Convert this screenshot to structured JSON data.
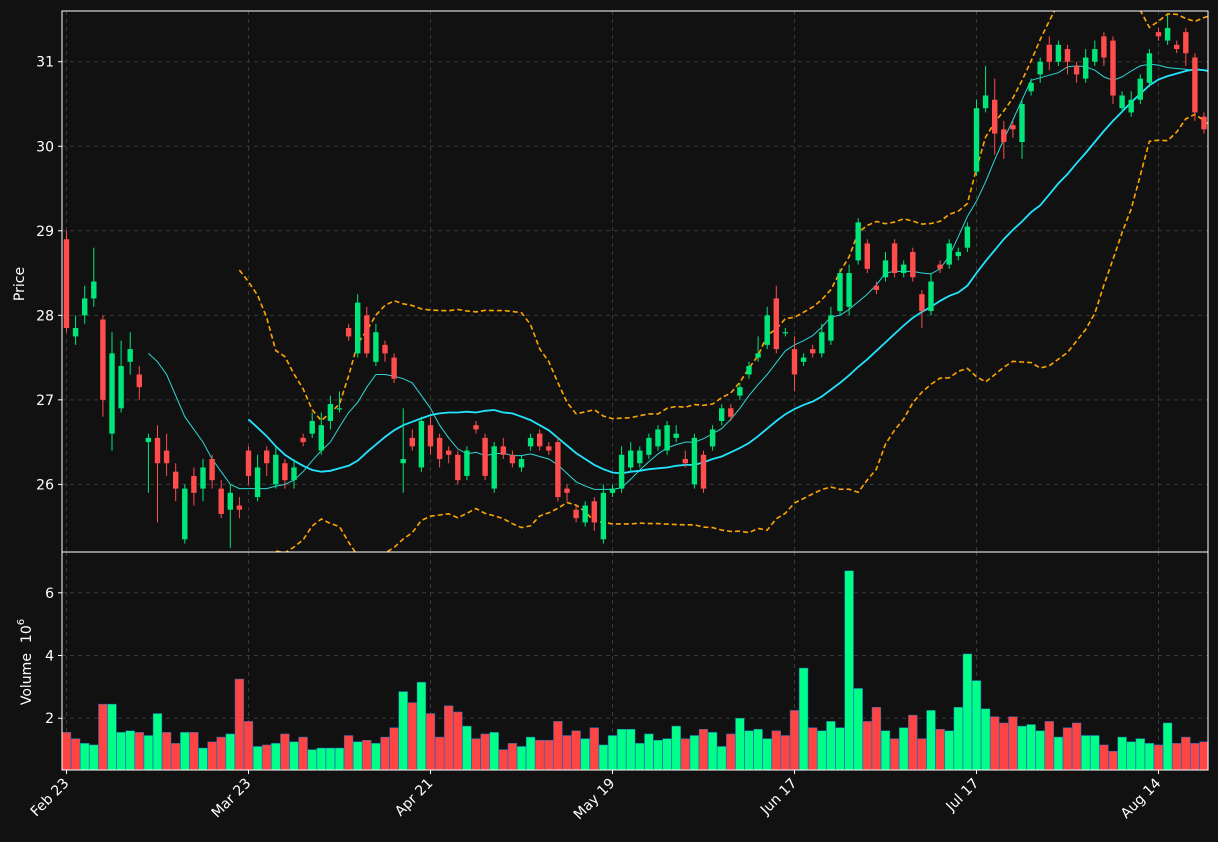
{
  "colors": {
    "background": "#111111",
    "frame": "#ffffff",
    "grid": "#3a3a3a",
    "up": "#00e67a",
    "down": "#ff4d4d",
    "volume_up": "#00ff88",
    "volume_down": "#ff4444",
    "ma_fast": "#2fd6d6",
    "ma_slow": "#22e4ff",
    "band": "#ffa500"
  },
  "chart_data": [
    {
      "type": "candlestick",
      "ylabel": "Price",
      "ylim": [
        25.2,
        31.6
      ],
      "yticks": [
        26,
        27,
        28,
        29,
        30,
        31
      ],
      "grid": true,
      "x_labels": [
        "Feb 23",
        "Mar 23",
        "Apr 21",
        "May 19",
        "Jun 17",
        "Jul 17",
        "Aug 14"
      ],
      "x_label_index": [
        0,
        20,
        40,
        60,
        80,
        100,
        120
      ],
      "candles": [
        [
          28.9,
          27.85,
          29.0,
          27.8
        ],
        [
          27.75,
          27.85,
          28.0,
          27.65
        ],
        [
          28.0,
          28.2,
          28.35,
          27.9
        ],
        [
          28.2,
          28.4,
          28.8,
          28.1
        ],
        [
          27.95,
          27.0,
          28.0,
          26.8
        ],
        [
          26.6,
          27.55,
          27.8,
          26.4
        ],
        [
          26.9,
          27.4,
          27.7,
          26.85
        ],
        [
          27.45,
          27.6,
          27.8,
          27.3
        ],
        [
          27.3,
          27.15,
          27.4,
          27.0
        ],
        [
          26.5,
          26.55,
          26.6,
          25.9
        ],
        [
          26.55,
          26.25,
          26.7,
          25.55
        ],
        [
          26.4,
          26.25,
          26.6,
          26.1
        ],
        [
          26.15,
          25.95,
          26.25,
          25.8
        ],
        [
          25.35,
          25.95,
          26.0,
          25.3
        ],
        [
          26.1,
          25.9,
          26.2,
          25.75
        ],
        [
          25.95,
          26.2,
          26.3,
          25.8
        ],
        [
          26.3,
          26.05,
          26.35,
          25.95
        ],
        [
          25.95,
          25.65,
          26.05,
          25.6
        ],
        [
          25.7,
          25.9,
          26.0,
          25.25
        ],
        [
          25.75,
          25.7,
          25.85,
          25.6
        ],
        [
          26.4,
          26.1,
          26.45,
          26.0
        ],
        [
          25.85,
          26.2,
          26.35,
          25.8
        ],
        [
          26.4,
          26.25,
          26.45,
          26.1
        ],
        [
          26.0,
          26.35,
          26.45,
          25.95
        ],
        [
          26.25,
          26.05,
          26.3,
          25.95
        ],
        [
          26.05,
          26.2,
          26.3,
          25.95
        ],
        [
          26.55,
          26.5,
          26.6,
          26.45
        ],
        [
          26.6,
          26.75,
          26.85,
          26.55
        ],
        [
          26.4,
          26.7,
          26.85,
          26.35
        ],
        [
          26.75,
          26.95,
          27.05,
          26.65
        ],
        [
          26.9,
          26.9,
          27.1,
          26.85
        ],
        [
          27.85,
          27.75,
          27.9,
          27.7
        ],
        [
          27.55,
          28.15,
          28.25,
          27.5
        ],
        [
          28.0,
          27.55,
          28.1,
          27.5
        ],
        [
          27.45,
          27.8,
          27.9,
          27.4
        ],
        [
          27.65,
          27.55,
          27.7,
          27.45
        ],
        [
          27.5,
          27.25,
          27.55,
          27.2
        ],
        [
          26.25,
          26.3,
          26.9,
          25.9
        ],
        [
          26.55,
          26.45,
          26.65,
          26.4
        ],
        [
          26.2,
          26.75,
          26.8,
          26.15
        ],
        [
          26.7,
          26.45,
          26.8,
          26.35
        ],
        [
          26.55,
          26.3,
          26.6,
          26.2
        ],
        [
          26.4,
          26.35,
          26.45,
          26.25
        ],
        [
          26.35,
          26.05,
          26.4,
          26.0
        ],
        [
          26.1,
          26.4,
          26.45,
          26.05
        ],
        [
          26.7,
          26.65,
          26.75,
          26.6
        ],
        [
          26.55,
          26.1,
          26.6,
          26.05
        ],
        [
          25.95,
          26.45,
          26.5,
          25.9
        ],
        [
          26.45,
          26.35,
          26.55,
          26.3
        ],
        [
          26.35,
          26.25,
          26.4,
          26.2
        ],
        [
          26.2,
          26.3,
          26.35,
          26.15
        ],
        [
          26.45,
          26.55,
          26.6,
          26.4
        ],
        [
          26.6,
          26.45,
          26.65,
          26.4
        ],
        [
          26.45,
          26.4,
          26.5,
          26.35
        ],
        [
          26.5,
          25.85,
          26.55,
          25.8
        ],
        [
          25.95,
          25.9,
          26.0,
          25.8
        ],
        [
          25.7,
          25.6,
          25.75,
          25.55
        ],
        [
          25.55,
          25.75,
          25.8,
          25.5
        ],
        [
          25.8,
          25.55,
          25.85,
          25.45
        ],
        [
          25.35,
          25.9,
          26.0,
          25.3
        ],
        [
          25.9,
          25.95,
          26.0,
          25.85
        ],
        [
          25.95,
          26.35,
          26.45,
          25.9
        ],
        [
          26.2,
          26.4,
          26.5,
          26.15
        ],
        [
          26.25,
          26.4,
          26.45,
          26.2
        ],
        [
          26.35,
          26.55,
          26.6,
          26.3
        ],
        [
          26.45,
          26.65,
          26.7,
          26.4
        ],
        [
          26.4,
          26.7,
          26.75,
          26.35
        ],
        [
          26.55,
          26.6,
          26.7,
          26.5
        ],
        [
          26.3,
          26.25,
          26.4,
          26.2
        ],
        [
          26.0,
          26.55,
          26.6,
          25.95
        ],
        [
          26.35,
          25.95,
          26.4,
          25.9
        ],
        [
          26.45,
          26.65,
          26.7,
          26.4
        ],
        [
          26.75,
          26.9,
          26.95,
          26.7
        ],
        [
          26.9,
          26.8,
          26.95,
          26.75
        ],
        [
          27.05,
          27.15,
          27.2,
          27.0
        ],
        [
          27.3,
          27.4,
          27.45,
          27.25
        ],
        [
          27.5,
          27.55,
          27.75,
          27.45
        ],
        [
          27.65,
          28.0,
          28.1,
          27.6
        ],
        [
          28.2,
          27.6,
          28.35,
          27.55
        ],
        [
          27.8,
          27.8,
          27.85,
          27.75
        ],
        [
          27.6,
          27.3,
          27.75,
          27.1
        ],
        [
          27.45,
          27.5,
          27.55,
          27.4
        ],
        [
          27.6,
          27.55,
          27.65,
          27.5
        ],
        [
          27.55,
          27.8,
          27.9,
          27.5
        ],
        [
          27.7,
          28.0,
          28.1,
          27.65
        ],
        [
          28.05,
          28.5,
          28.55,
          28.0
        ],
        [
          28.1,
          28.5,
          28.6,
          28.0
        ],
        [
          28.65,
          29.1,
          29.15,
          28.6
        ],
        [
          28.85,
          28.55,
          28.9,
          28.5
        ],
        [
          28.35,
          28.3,
          28.4,
          28.25
        ],
        [
          28.45,
          28.65,
          28.75,
          28.4
        ],
        [
          28.85,
          28.5,
          28.9,
          28.45
        ],
        [
          28.5,
          28.6,
          28.65,
          28.45
        ],
        [
          28.75,
          28.45,
          28.8,
          28.4
        ],
        [
          28.25,
          28.05,
          28.3,
          27.85
        ],
        [
          28.05,
          28.4,
          28.5,
          28.0
        ],
        [
          28.6,
          28.55,
          28.65,
          28.5
        ],
        [
          28.6,
          28.85,
          28.9,
          28.55
        ],
        [
          28.7,
          28.75,
          28.8,
          28.65
        ],
        [
          28.8,
          29.05,
          29.1,
          28.75
        ],
        [
          29.7,
          30.45,
          30.55,
          29.65
        ],
        [
          30.45,
          30.6,
          30.95,
          30.4
        ],
        [
          30.55,
          30.15,
          30.8,
          29.9
        ],
        [
          30.2,
          30.05,
          30.3,
          29.85
        ],
        [
          30.25,
          30.2,
          30.3,
          30.1
        ],
        [
          30.05,
          30.5,
          30.55,
          29.85
        ],
        [
          30.65,
          30.75,
          30.8,
          30.6
        ],
        [
          30.85,
          31.0,
          31.05,
          30.75
        ],
        [
          31.2,
          31.0,
          31.3,
          30.9
        ],
        [
          31.0,
          31.2,
          31.25,
          30.95
        ],
        [
          31.15,
          31.0,
          31.2,
          30.85
        ],
        [
          30.95,
          30.85,
          31.0,
          30.75
        ],
        [
          30.8,
          31.05,
          31.15,
          30.75
        ],
        [
          31.0,
          31.15,
          31.25,
          30.95
        ],
        [
          31.3,
          31.05,
          31.35,
          30.95
        ],
        [
          31.25,
          30.6,
          31.3,
          30.5
        ],
        [
          30.45,
          30.6,
          30.65,
          30.4
        ],
        [
          30.4,
          30.55,
          30.65,
          30.35
        ],
        [
          30.55,
          30.8,
          30.85,
          30.5
        ],
        [
          30.75,
          31.1,
          31.15,
          30.7
        ],
        [
          31.35,
          31.3,
          31.4,
          31.25
        ],
        [
          31.25,
          31.4,
          31.55,
          31.2
        ],
        [
          31.2,
          31.15,
          31.25,
          31.1
        ],
        [
          31.35,
          31.1,
          31.4,
          30.95
        ],
        [
          31.05,
          30.4,
          31.1,
          30.3
        ],
        [
          30.35,
          30.2,
          30.4,
          30.15
        ],
        [
          30.4,
          30.25,
          30.45,
          30.2
        ]
      ],
      "ma_fast": [
        null,
        null,
        null,
        null,
        null,
        null,
        null,
        null,
        null,
        27.55,
        27.45,
        27.3,
        27.05,
        26.8,
        26.65,
        26.5,
        26.3,
        26.15,
        26.0,
        25.95,
        25.95,
        25.95,
        25.95,
        25.98,
        26.0,
        26.05,
        26.15,
        26.28,
        26.4,
        26.5,
        26.68,
        26.85,
        26.97,
        27.15,
        27.3,
        27.3,
        27.28,
        27.25,
        27.2,
        27.05,
        26.9,
        26.7,
        26.55,
        26.42,
        26.36,
        26.38,
        26.34,
        26.36,
        26.37,
        26.34,
        26.34,
        26.36,
        26.33,
        26.3,
        26.23,
        26.13,
        26.03,
        25.98,
        25.94,
        25.94,
        25.94,
        25.96,
        26.06,
        26.17,
        26.27,
        26.36,
        26.43,
        26.47,
        26.5,
        26.5,
        26.54,
        26.6,
        26.66,
        26.77,
        26.9,
        27.05,
        27.18,
        27.3,
        27.44,
        27.58,
        27.65,
        27.7,
        27.76,
        27.86,
        27.98,
        28.0,
        28.07,
        28.16,
        28.25,
        28.36,
        28.5,
        28.52,
        28.52,
        28.52,
        28.5,
        28.49,
        28.55,
        28.7,
        28.93,
        29.17,
        29.35,
        29.58,
        29.84,
        30.08,
        30.31,
        30.55,
        30.78,
        30.81,
        30.84,
        30.87,
        30.94,
        30.95,
        30.94,
        30.9,
        30.82,
        30.78,
        30.82,
        30.89,
        30.95,
        30.97,
        30.96,
        30.93,
        30.92,
        30.91,
        30.89
      ],
      "ma_slow": [
        null,
        null,
        null,
        null,
        null,
        null,
        null,
        null,
        null,
        null,
        null,
        null,
        null,
        null,
        null,
        null,
        null,
        null,
        null,
        null,
        26.77,
        26.67,
        26.57,
        26.45,
        26.35,
        26.28,
        26.22,
        26.17,
        26.15,
        26.16,
        26.19,
        26.22,
        26.28,
        26.38,
        26.47,
        26.56,
        26.64,
        26.7,
        26.74,
        26.78,
        26.82,
        26.84,
        26.85,
        26.85,
        26.86,
        26.85,
        26.87,
        26.88,
        26.85,
        26.84,
        26.8,
        26.76,
        26.7,
        26.64,
        26.55,
        26.46,
        26.37,
        26.3,
        26.23,
        26.18,
        26.14,
        26.13,
        26.15,
        26.16,
        26.18,
        26.19,
        26.2,
        26.22,
        26.23,
        26.23,
        26.26,
        26.3,
        26.33,
        26.38,
        26.43,
        26.49,
        26.57,
        26.66,
        26.75,
        26.83,
        26.89,
        26.94,
        26.98,
        27.04,
        27.12,
        27.2,
        27.29,
        27.39,
        27.48,
        27.58,
        27.68,
        27.78,
        27.88,
        27.97,
        28.04,
        28.1,
        28.17,
        28.23,
        28.27,
        28.35,
        28.5,
        28.64,
        28.77,
        28.9,
        29.01,
        29.11,
        29.22,
        29.3,
        29.43,
        29.56,
        29.67,
        29.8,
        29.92,
        30.05,
        30.18,
        30.3,
        30.41,
        30.52,
        30.62,
        30.72,
        30.79,
        30.83,
        30.86,
        30.89,
        30.91,
        30.9,
        30.88,
        30.85
      ]
    },
    {
      "type": "bar",
      "ylabel": "Volume",
      "ylabel_scale": "10",
      "ylabel_scale_exp": "6",
      "ylim": [
        0.35,
        7.3
      ],
      "yticks": [
        2,
        4,
        6
      ],
      "grid": true,
      "values": [
        1.55,
        1.35,
        1.2,
        1.15,
        2.45,
        2.45,
        1.55,
        1.6,
        1.55,
        1.45,
        2.15,
        1.55,
        1.2,
        1.55,
        1.55,
        1.05,
        1.25,
        1.4,
        1.5,
        3.25,
        1.9,
        1.1,
        1.15,
        1.2,
        1.5,
        1.25,
        1.4,
        1.0,
        1.05,
        1.05,
        1.05,
        1.45,
        1.25,
        1.3,
        1.2,
        1.4,
        1.7,
        2.85,
        2.5,
        3.15,
        2.15,
        1.4,
        2.4,
        2.2,
        1.75,
        1.35,
        1.5,
        1.55,
        1.0,
        1.2,
        1.1,
        1.4,
        1.3,
        1.3,
        1.9,
        1.45,
        1.6,
        1.35,
        1.7,
        1.15,
        1.45,
        1.65,
        1.65,
        1.2,
        1.5,
        1.3,
        1.35,
        1.75,
        1.35,
        1.45,
        1.65,
        1.55,
        1.1,
        1.5,
        2.0,
        1.6,
        1.65,
        1.35,
        1.6,
        1.45,
        2.25,
        3.6,
        1.7,
        1.6,
        1.9,
        1.7,
        6.7,
        2.95,
        1.9,
        2.35,
        1.6,
        1.35,
        1.7,
        2.1,
        1.35,
        2.25,
        1.65,
        1.6,
        2.35,
        4.05,
        3.2,
        2.3,
        2.05,
        1.85,
        2.05,
        1.75,
        1.8,
        1.6,
        1.9,
        1.4,
        1.7,
        1.85,
        1.45,
        1.45,
        1.15,
        0.95,
        1.4,
        1.25,
        1.35,
        1.2,
        1.15,
        1.85,
        1.2,
        1.4,
        1.2,
        1.25
      ],
      "up": [
        0,
        0,
        1,
        1,
        0,
        1,
        1,
        1,
        0,
        1,
        1,
        0,
        0,
        1,
        0,
        1,
        0,
        0,
        1,
        0,
        0,
        1,
        0,
        1,
        0,
        1,
        0,
        1,
        1,
        1,
        1,
        0,
        1,
        0,
        1,
        0,
        0,
        1,
        0,
        1,
        0,
        0,
        0,
        0,
        1,
        0,
        0,
        1,
        0,
        0,
        1,
        1,
        0,
        0,
        0,
        0,
        0,
        1,
        0,
        1,
        1,
        1,
        1,
        1,
        1,
        1,
        1,
        1,
        0,
        1,
        0,
        1,
        1,
        0,
        1,
        1,
        1,
        1,
        0,
        0,
        0,
        1,
        0,
        1,
        1,
        1,
        1,
        1,
        0,
        0,
        1,
        0,
        1,
        0,
        0,
        1,
        0,
        1,
        1,
        1,
        1,
        1,
        0,
        0,
        0,
        1,
        1,
        1,
        0,
        1,
        0,
        0,
        1,
        1,
        0,
        0,
        1,
        1,
        1,
        1,
        0,
        1,
        0,
        0,
        0,
        0,
        0
      ]
    }
  ]
}
